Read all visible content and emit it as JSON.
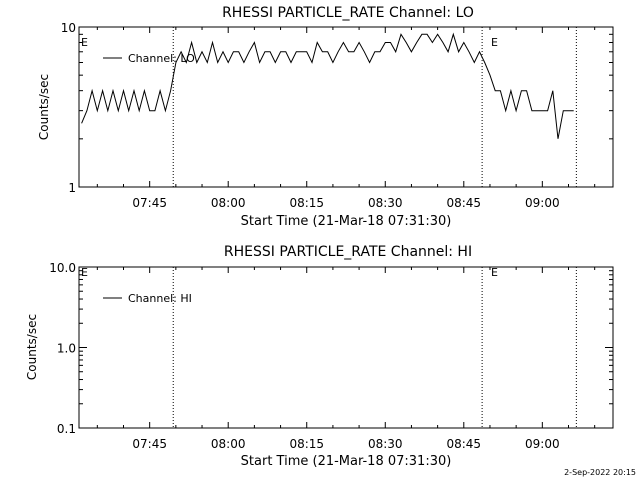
{
  "chart_data": [
    {
      "type": "line",
      "title": "RHESSI PARTICLE_RATE Channel: LO",
      "xlabel": "Start Time (21-Mar-18 07:31:30)",
      "ylabel": "Counts/sec",
      "yscale": "log",
      "ylim": [
        1,
        10
      ],
      "xlim": [
        "07:31:30",
        "09:13:30"
      ],
      "y_ticks": [
        "1",
        "10"
      ],
      "x_ticks": [
        "07:45",
        "08:00",
        "08:15",
        "08:30",
        "08:45",
        "09:00"
      ],
      "series": [
        {
          "name": "Channel: LO",
          "x": [
            "07:32",
            "07:33",
            "07:34",
            "07:35",
            "07:36",
            "07:37",
            "07:38",
            "07:39",
            "07:40",
            "07:41",
            "07:42",
            "07:43",
            "07:44",
            "07:45",
            "07:46",
            "07:47",
            "07:48",
            "07:49",
            "07:50",
            "07:51",
            "07:52",
            "07:53",
            "07:54",
            "07:55",
            "07:56",
            "07:57",
            "07:58",
            "07:59",
            "08:00",
            "08:01",
            "08:02",
            "08:03",
            "08:04",
            "08:05",
            "08:06",
            "08:07",
            "08:08",
            "08:09",
            "08:10",
            "08:11",
            "08:12",
            "08:13",
            "08:14",
            "08:15",
            "08:16",
            "08:17",
            "08:18",
            "08:19",
            "08:20",
            "08:21",
            "08:22",
            "08:23",
            "08:24",
            "08:25",
            "08:26",
            "08:27",
            "08:28",
            "08:29",
            "08:30",
            "08:31",
            "08:32",
            "08:33",
            "08:34",
            "08:35",
            "08:36",
            "08:37",
            "08:38",
            "08:39",
            "08:40",
            "08:41",
            "08:42",
            "08:43",
            "08:44",
            "08:45",
            "08:46",
            "08:47",
            "08:48",
            "08:49",
            "08:50",
            "08:51",
            "08:52",
            "08:53",
            "08:54",
            "08:55",
            "08:56",
            "08:57",
            "08:58",
            "08:59",
            "09:00",
            "09:01",
            "09:02",
            "09:03",
            "09:04",
            "09:05",
            "09:06"
          ],
          "values": [
            2.5,
            3,
            4,
            3,
            4,
            3,
            4,
            3,
            4,
            3,
            4,
            3,
            4,
            3,
            3,
            4,
            3,
            4,
            6,
            7,
            6,
            8,
            6,
            7,
            6,
            8,
            6,
            7,
            6,
            7,
            7,
            6,
            7,
            8,
            6,
            7,
            7,
            6,
            7,
            7,
            6,
            7,
            7,
            7,
            6,
            8,
            7,
            7,
            6,
            7,
            8,
            7,
            7,
            8,
            7,
            6,
            7,
            7,
            8,
            8,
            7,
            9,
            8,
            7,
            8,
            9,
            9,
            8,
            9,
            8,
            7,
            9,
            7,
            8,
            7,
            6,
            7,
            6,
            5,
            4,
            4,
            3,
            4,
            3,
            4,
            4,
            3,
            3,
            3,
            3,
            4,
            2,
            3,
            3,
            3
          ]
        }
      ],
      "annotations": [
        "E",
        "E"
      ]
    },
    {
      "type": "line",
      "title": "RHESSI PARTICLE_RATE Channel: HI",
      "xlabel": "Start Time (21-Mar-18 07:31:30)",
      "ylabel": "Counts/sec",
      "yscale": "log",
      "ylim": [
        0.1,
        10
      ],
      "xlim": [
        "07:31:30",
        "09:13:30"
      ],
      "y_ticks": [
        "0.1",
        "1.0",
        "10.0"
      ],
      "x_ticks": [
        "07:45",
        "08:00",
        "08:15",
        "08:30",
        "08:45",
        "09:00"
      ],
      "series": [
        {
          "name": "Channel: HI",
          "x": [],
          "values": []
        }
      ],
      "annotations": [
        "E",
        "E"
      ]
    }
  ],
  "markers": [
    "07:49:30",
    "08:48:30",
    "09:06:30"
  ],
  "timestamp": "2-Sep-2022 20:15"
}
